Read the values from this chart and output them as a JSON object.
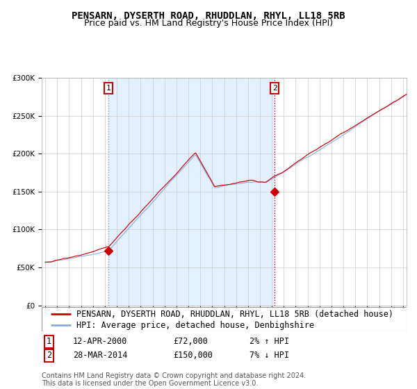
{
  "title": "PENSARN, DYSERTH ROAD, RHUDDLAN, RHYL, LL18 5RB",
  "subtitle": "Price paid vs. HM Land Registry's House Price Index (HPI)",
  "legend_line1": "PENSARN, DYSERTH ROAD, RHUDDLAN, RHYL, LL18 5RB (detached house)",
  "legend_line2": "HPI: Average price, detached house, Denbighshire",
  "marker1_date": "12-APR-2000",
  "marker1_price": 72000,
  "marker1_hpi": "2% ↑ HPI",
  "marker1_year": 2000.28,
  "marker2_date": "28-MAR-2014",
  "marker2_price": 150000,
  "marker2_hpi": "7% ↓ HPI",
  "marker2_year": 2014.24,
  "year_start": 1995,
  "year_end": 2025,
  "ylim_min": 0,
  "ylim_max": 300000,
  "ytick_step": 50000,
  "grid_color": "#cccccc",
  "line_color_red": "#cc0000",
  "line_color_blue": "#88aadd",
  "marker_color": "#cc0000",
  "vline1_color": "#999999",
  "vline2_color": "#cc0000",
  "shade_color": "#ddeeff",
  "footnote": "Contains HM Land Registry data © Crown copyright and database right 2024.\nThis data is licensed under the Open Government Licence v3.0.",
  "title_fontsize": 10,
  "subtitle_fontsize": 9,
  "tick_fontsize": 7.5,
  "legend_fontsize": 8.5,
  "footnote_fontsize": 7
}
